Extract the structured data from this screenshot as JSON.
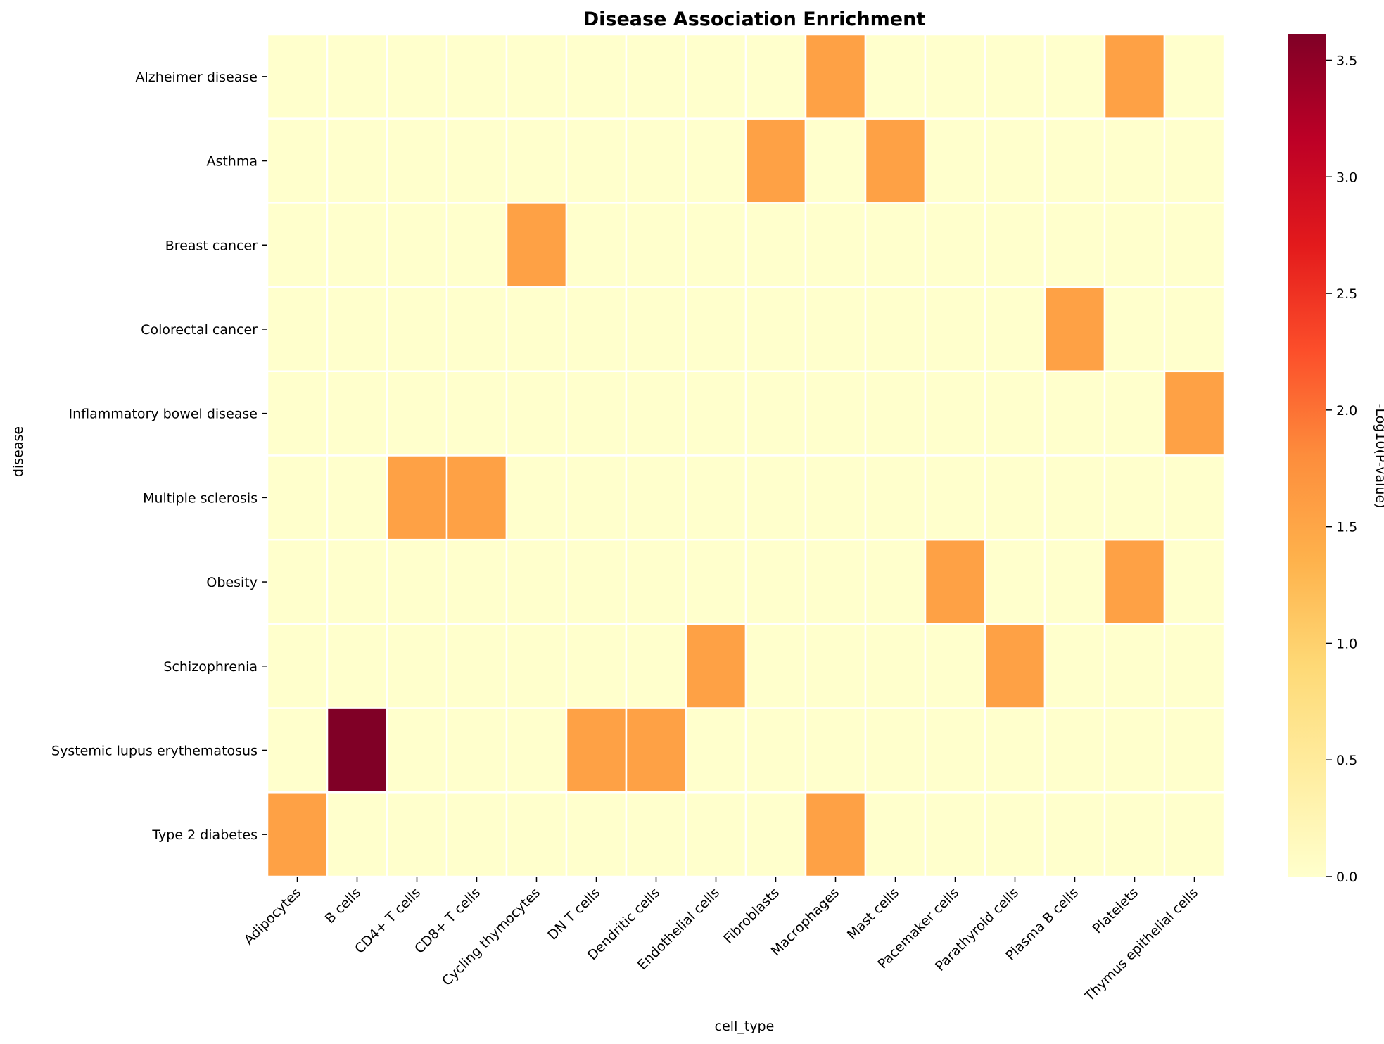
{
  "chart_data": {
    "type": "heatmap",
    "title": "Disease Association Enrichment",
    "xlabel": "cell_type",
    "ylabel": "disease",
    "colorbar_label": "-Log10(P-value)",
    "colormap": "YlOrRd",
    "vmin": 0,
    "vmax": 3.61,
    "colorbar_ticks": [
      "0.0",
      "0.5",
      "1.0",
      "1.5",
      "2.0",
      "2.5",
      "3.0",
      "3.5"
    ],
    "x_categories": [
      "Adipocytes",
      "B cells",
      "CD4+ T cells",
      "CD8+ T cells",
      "Cycling thymocytes",
      "DN T cells",
      "Dendritic cells",
      "Endothelial cells",
      "Fibroblasts",
      "Macrophages",
      "Mast cells",
      "Pacemaker cells",
      "Parathyroid cells",
      "Plasma B cells",
      "Platelets",
      "Thymus epithelial cells"
    ],
    "y_categories": [
      "Alzheimer disease",
      "Asthma",
      "Breast cancer",
      "Colorectal cancer",
      "Inflammatory bowel disease",
      "Multiple sclerosis",
      "Obesity",
      "Schizophrenia",
      "Systemic lupus erythematosus",
      "Type 2 diabetes"
    ],
    "values": [
      [
        0,
        0,
        0,
        0,
        0,
        0,
        0,
        0,
        0,
        1.56,
        0,
        0,
        0,
        0,
        1.56,
        0
      ],
      [
        0,
        0,
        0,
        0,
        0,
        0,
        0,
        0,
        1.56,
        0,
        1.56,
        0,
        0,
        0,
        0,
        0
      ],
      [
        0,
        0,
        0,
        0,
        1.56,
        0,
        0,
        0,
        0,
        0,
        0,
        0,
        0,
        0,
        0,
        0
      ],
      [
        0,
        0,
        0,
        0,
        0,
        0,
        0,
        0,
        0,
        0,
        0,
        0,
        0,
        1.56,
        0,
        0
      ],
      [
        0,
        0,
        0,
        0,
        0,
        0,
        0,
        0,
        0,
        0,
        0,
        0,
        0,
        0,
        0,
        1.56
      ],
      [
        0,
        0,
        1.56,
        1.56,
        0,
        0,
        0,
        0,
        0,
        0,
        0,
        0,
        0,
        0,
        0,
        0
      ],
      [
        0,
        0,
        0,
        0,
        0,
        0,
        0,
        0,
        0,
        0,
        0,
        1.56,
        0,
        0,
        1.56,
        0
      ],
      [
        0,
        0,
        0,
        0,
        0,
        0,
        0,
        1.56,
        0,
        0,
        0,
        0,
        1.56,
        0,
        0,
        0
      ],
      [
        0,
        3.61,
        0,
        0,
        0,
        1.56,
        1.56,
        0,
        0,
        0,
        0,
        0,
        0,
        0,
        0,
        0
      ],
      [
        1.56,
        0,
        0,
        0,
        0,
        0,
        0,
        0,
        0,
        1.56,
        0,
        0,
        0,
        0,
        0,
        0
      ]
    ]
  }
}
